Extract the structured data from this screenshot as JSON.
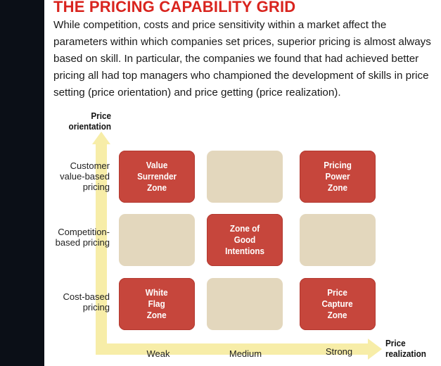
{
  "title": "THE PRICING CAPABILITY GRID",
  "intro": "While competition, costs and price sensitivity within a market affect the parameters within which companies set prices, superior pricing is almost always based on skill. In particular, the companies we found that had achieved better pricing all had top managers who championed the development of skills in price setting (price orientation) and price getting (price realization).",
  "axes": {
    "y_title_1": "Price",
    "y_title_2": "orientation",
    "x_title_1": "Price",
    "x_title_2": "realization"
  },
  "rows": [
    {
      "label_1": "Customer",
      "label_2": "value-based",
      "label_3": "pricing"
    },
    {
      "label_1": "Competition-",
      "label_2": "based pricing"
    },
    {
      "label_1": "Cost-based",
      "label_2": "pricing"
    }
  ],
  "columns": [
    "Weak",
    "Medium",
    "Strong"
  ],
  "zones": {
    "value_surrender": [
      "Value",
      "Surrender",
      "Zone"
    ],
    "pricing_power": [
      "Pricing",
      "Power",
      "Zone"
    ],
    "good_intentions": [
      "Zone of",
      "Good",
      "Intentions"
    ],
    "white_flag": [
      "White",
      "Flag",
      "Zone"
    ],
    "price_capture": [
      "Price",
      "Capture",
      "Zone"
    ]
  },
  "colors": {
    "title": "#d9241e",
    "zone": "#c6463c",
    "empty_cell": "#e3d7bd",
    "arrow": "#f7eda8"
  }
}
